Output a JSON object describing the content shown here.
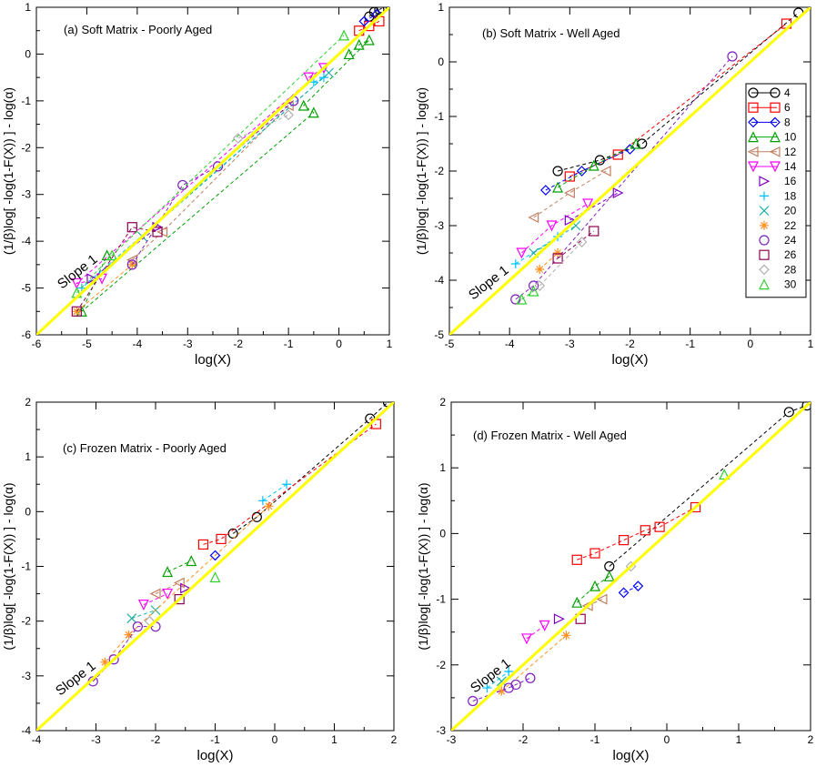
{
  "chart_data": [
    {
      "type": "scatter",
      "title": "(a) Soft Matrix - Poorly Aged",
      "xlabel": "log(X)",
      "ylabel": "(1/β)log[ -log(1-F(X)) ] - log(α)",
      "xlim": [
        -6,
        1
      ],
      "ylim": [
        -6,
        1
      ],
      "xticks": [
        "-6",
        "-5",
        "-4",
        "-3",
        "-2",
        "-1",
        "0",
        "1"
      ],
      "yticks": [
        "-6",
        "-5",
        "-4",
        "-3",
        "-2",
        "-1",
        "0",
        "1"
      ],
      "reference_line": {
        "label": "Slope 1",
        "x": [
          -6,
          1
        ],
        "y": [
          -6,
          1
        ],
        "color": "#ffff00"
      },
      "series": [
        {
          "name": "4",
          "values": [
            [
              0.6,
              0.8
            ],
            [
              0.7,
              0.9
            ],
            [
              0.8,
              0.95
            ],
            [
              0.85,
              0.98
            ]
          ]
        },
        {
          "name": "6",
          "values": [
            [
              0.4,
              0.5
            ],
            [
              0.6,
              0.6
            ],
            [
              0.8,
              0.7
            ]
          ]
        },
        {
          "name": "8",
          "values": [
            [
              0.5,
              0.7
            ],
            [
              0.75,
              0.85
            ]
          ]
        },
        {
          "name": "10",
          "values": [
            [
              0.2,
              0.0
            ],
            [
              0.4,
              0.2
            ],
            [
              0.6,
              0.3
            ],
            [
              -0.7,
              -1.1
            ],
            [
              -0.5,
              -1.25
            ],
            [
              -5.1,
              -5.5
            ],
            [
              -4.6,
              -4.3
            ]
          ]
        },
        {
          "name": "12",
          "values": [
            [
              -4.1,
              -4.4
            ],
            [
              -3.5,
              -3.8
            ],
            [
              -1.0,
              -1.1
            ]
          ]
        },
        {
          "name": "14",
          "values": [
            [
              -0.6,
              -0.5
            ],
            [
              -0.3,
              -0.3
            ],
            [
              -5.2,
              -4.9
            ],
            [
              -4.7,
              -4.8
            ]
          ]
        },
        {
          "name": "16",
          "values": [
            [
              -4.9,
              -4.8
            ],
            [
              -3.6,
              -3.7
            ]
          ]
        },
        {
          "name": "18",
          "values": [
            [
              -0.5,
              -0.6
            ],
            [
              -0.3,
              -0.5
            ],
            [
              -5.1,
              -5.0
            ]
          ]
        },
        {
          "name": "20",
          "values": [
            [
              -3.9,
              -3.9
            ],
            [
              -0.2,
              -0.4
            ]
          ]
        },
        {
          "name": "22",
          "values": [
            [
              -5.2,
              -5.5
            ],
            [
              -4.1,
              -4.5
            ]
          ]
        },
        {
          "name": "24",
          "values": [
            [
              -4.1,
              -4.5
            ],
            [
              -3.1,
              -2.8
            ],
            [
              -2.4,
              -2.4
            ],
            [
              -0.9,
              -1.0
            ]
          ]
        },
        {
          "name": "26",
          "values": [
            [
              -5.2,
              -5.5
            ],
            [
              -4.1,
              -3.7
            ],
            [
              -3.6,
              -3.8
            ]
          ]
        },
        {
          "name": "28",
          "values": [
            [
              -2.0,
              -1.8
            ],
            [
              -1.0,
              -1.3
            ]
          ]
        },
        {
          "name": "30",
          "values": [
            [
              -5.2,
              -5.1
            ],
            [
              -4.5,
              -4.3
            ],
            [
              0.1,
              0.4
            ]
          ]
        }
      ]
    },
    {
      "type": "scatter",
      "title": "(b) Soft Matrix - Well Aged",
      "xlabel": "log(X)",
      "ylabel": "(1/β)log[ -log(1-F(X)) ] - log(α)",
      "xlim": [
        -5,
        1
      ],
      "ylim": [
        -5,
        1
      ],
      "xticks": [
        "-5",
        "-4",
        "-3",
        "-2",
        "-1",
        "0",
        "1"
      ],
      "yticks": [
        "-5",
        "-4",
        "-3",
        "-2",
        "-1",
        "0",
        "1"
      ],
      "reference_line": {
        "label": "Slope 1",
        "x": [
          -5,
          1
        ],
        "y": [
          -5,
          1
        ],
        "color": "#ffff00"
      },
      "series": [
        {
          "name": "4",
          "values": [
            [
              -3.2,
              -2.0
            ],
            [
              -2.5,
              -1.8
            ],
            [
              -1.8,
              -1.5
            ],
            [
              0.8,
              0.9
            ]
          ]
        },
        {
          "name": "6",
          "values": [
            [
              -3.0,
              -2.1
            ],
            [
              -2.2,
              -1.7
            ],
            [
              0.6,
              0.7
            ]
          ]
        },
        {
          "name": "8",
          "values": [
            [
              -3.4,
              -2.35
            ],
            [
              -2.8,
              -2.0
            ],
            [
              -2.0,
              -1.6
            ]
          ]
        },
        {
          "name": "10",
          "values": [
            [
              -3.2,
              -2.3
            ],
            [
              -2.6,
              -1.9
            ],
            [
              -1.9,
              -1.5
            ]
          ]
        },
        {
          "name": "12",
          "values": [
            [
              -3.6,
              -2.85
            ],
            [
              -3.0,
              -2.4
            ],
            [
              -2.4,
              -2.0
            ]
          ]
        },
        {
          "name": "14",
          "values": [
            [
              -3.8,
              -3.5
            ],
            [
              -3.3,
              -3.0
            ],
            [
              -2.7,
              -2.6
            ]
          ]
        },
        {
          "name": "16",
          "values": [
            [
              -3.0,
              -2.9
            ],
            [
              -2.2,
              -2.4
            ]
          ]
        },
        {
          "name": "18",
          "values": [
            [
              -3.9,
              -3.7
            ],
            [
              -3.2,
              -3.2
            ]
          ]
        },
        {
          "name": "20",
          "values": [
            [
              -3.6,
              -3.5
            ],
            [
              -2.9,
              -3.0
            ]
          ]
        },
        {
          "name": "22",
          "values": [
            [
              -3.5,
              -3.8
            ],
            [
              -3.2,
              -3.5
            ]
          ]
        },
        {
          "name": "24",
          "values": [
            [
              -3.9,
              -4.35
            ],
            [
              -3.6,
              -4.1
            ],
            [
              -0.3,
              0.1
            ]
          ]
        },
        {
          "name": "26",
          "values": [
            [
              -3.2,
              -3.6
            ],
            [
              -2.6,
              -3.1
            ]
          ]
        },
        {
          "name": "28",
          "values": [
            [
              -3.5,
              -4.1
            ],
            [
              -2.8,
              -3.3
            ]
          ]
        },
        {
          "name": "30",
          "values": [
            [
              -3.8,
              -4.35
            ],
            [
              -3.6,
              -4.2
            ]
          ]
        }
      ],
      "legend": [
        "4",
        "6",
        "8",
        "10",
        "12",
        "14",
        "16",
        "18",
        "20",
        "22",
        "24",
        "26",
        "28",
        "30"
      ]
    },
    {
      "type": "scatter",
      "title": "(c) Frozen Matrix - Poorly Aged",
      "xlabel": "log(X)",
      "ylabel": "(1/β)log[ -log(1-F(X)) ] - log(α)",
      "xlim": [
        -4,
        2
      ],
      "ylim": [
        -4,
        2
      ],
      "xticks": [
        "-4",
        "-3",
        "-2",
        "-1",
        "0",
        "1",
        "2"
      ],
      "yticks": [
        "-4",
        "-3",
        "-2",
        "-1",
        "0",
        "1",
        "2"
      ],
      "reference_line": {
        "label": "Slope 1",
        "x": [
          -4,
          2
        ],
        "y": [
          -4,
          2
        ],
        "color": "#ffff00"
      },
      "series": [
        {
          "name": "4",
          "values": [
            [
              -0.7,
              -0.4
            ],
            [
              -0.3,
              -0.1
            ],
            [
              1.6,
              1.7
            ],
            [
              1.9,
              2.0
            ]
          ]
        },
        {
          "name": "6",
          "values": [
            [
              -1.2,
              -0.6
            ],
            [
              -0.9,
              -0.5
            ],
            [
              1.7,
              1.6
            ]
          ]
        },
        {
          "name": "8",
          "values": [
            [
              -1.0,
              -0.8
            ]
          ]
        },
        {
          "name": "10",
          "values": [
            [
              -1.8,
              -1.1
            ],
            [
              -1.4,
              -0.9
            ]
          ]
        },
        {
          "name": "12",
          "values": [
            [
              -2.0,
              -1.5
            ],
            [
              -1.6,
              -1.3
            ]
          ]
        },
        {
          "name": "14",
          "values": [
            [
              -2.2,
              -1.7
            ],
            [
              -1.8,
              -1.5
            ]
          ]
        },
        {
          "name": "16",
          "values": [
            [
              -1.5,
              -1.4
            ]
          ]
        },
        {
          "name": "18",
          "values": [
            [
              -0.2,
              0.2
            ],
            [
              0.2,
              0.5
            ]
          ]
        },
        {
          "name": "20",
          "values": [
            [
              -2.4,
              -1.95
            ],
            [
              -2.0,
              -1.8
            ]
          ]
        },
        {
          "name": "22",
          "values": [
            [
              -2.85,
              -2.75
            ],
            [
              -2.45,
              -2.25
            ],
            [
              -0.1,
              0.1
            ]
          ]
        },
        {
          "name": "24",
          "values": [
            [
              -3.05,
              -3.1
            ],
            [
              -2.7,
              -2.7
            ],
            [
              -2.3,
              -2.1
            ],
            [
              -2.0,
              -2.1
            ]
          ]
        },
        {
          "name": "26",
          "values": [
            [
              -1.6,
              -1.6
            ]
          ]
        },
        {
          "name": "28",
          "values": [
            [
              -2.1,
              -2.0
            ]
          ]
        },
        {
          "name": "30",
          "values": [
            [
              -1.0,
              -1.2
            ]
          ]
        }
      ]
    },
    {
      "type": "scatter",
      "title": "(d) Frozen Matrix - Well Aged",
      "xlabel": "log(X)",
      "ylabel": "(1/β)log[ -log(1-F(X)) ] - log(α)",
      "xlim": [
        -3,
        2
      ],
      "ylim": [
        -3,
        2
      ],
      "xticks": [
        "-3",
        "-2",
        "-1",
        "0",
        "1",
        "2"
      ],
      "yticks": [
        "-3",
        "-2",
        "-1",
        "0",
        "1",
        "2"
      ],
      "reference_line": {
        "label": "Slope 1",
        "x": [
          -3,
          2
        ],
        "y": [
          -3,
          2
        ],
        "color": "#ffff00"
      },
      "series": [
        {
          "name": "4",
          "values": [
            [
              -0.8,
              -0.5
            ],
            [
              1.7,
              1.85
            ],
            [
              1.95,
              1.95
            ]
          ]
        },
        {
          "name": "6",
          "values": [
            [
              -1.25,
              -0.4
            ],
            [
              -1.0,
              -0.3
            ],
            [
              -0.6,
              -0.1
            ],
            [
              -0.3,
              0.05
            ],
            [
              -0.1,
              0.1
            ],
            [
              0.4,
              0.4
            ]
          ]
        },
        {
          "name": "8",
          "values": [
            [
              -0.6,
              -0.9
            ],
            [
              -0.4,
              -0.8
            ]
          ]
        },
        {
          "name": "10",
          "values": [
            [
              -1.25,
              -1.05
            ],
            [
              -1.0,
              -0.8
            ],
            [
              -0.8,
              -0.65
            ]
          ]
        },
        {
          "name": "12",
          "values": [
            [
              -1.1,
              -1.1
            ],
            [
              -0.9,
              -1.0
            ]
          ]
        },
        {
          "name": "14",
          "values": [
            [
              -1.95,
              -1.6
            ],
            [
              -1.7,
              -1.4
            ]
          ]
        },
        {
          "name": "16",
          "values": [
            [
              -1.5,
              -1.3
            ]
          ]
        },
        {
          "name": "18",
          "values": [
            [
              -2.5,
              -2.35
            ],
            [
              -2.2,
              -2.1
            ]
          ]
        },
        {
          "name": "20",
          "values": [
            [
              -2.3,
              -2.25
            ]
          ]
        },
        {
          "name": "22",
          "values": [
            [
              -2.3,
              -2.4
            ],
            [
              -1.4,
              -1.55
            ]
          ]
        },
        {
          "name": "24",
          "values": [
            [
              -2.7,
              -2.55
            ],
            [
              -2.2,
              -2.35
            ],
            [
              -2.1,
              -2.3
            ],
            [
              -1.9,
              -2.2
            ]
          ]
        },
        {
          "name": "26",
          "values": [
            [
              -1.2,
              -1.3
            ]
          ]
        },
        {
          "name": "28",
          "values": [
            [
              -0.5,
              -0.5
            ]
          ]
        },
        {
          "name": "30",
          "values": [
            [
              0.8,
              0.9
            ]
          ]
        }
      ]
    }
  ],
  "colors": {
    "4": "#000000",
    "6": "#ff0000",
    "8": "#0000ff",
    "10": "#00a000",
    "12": "#c08060",
    "14": "#ff00ff",
    "16": "#8000c0",
    "18": "#00c0ff",
    "20": "#20b0a0",
    "22": "#ff9020",
    "24": "#8020c0",
    "26": "#900050",
    "28": "#b0b0b0",
    "30": "#30d030",
    "reference": "#ffff00"
  },
  "markers": {
    "4": "circle",
    "6": "square",
    "8": "diamond",
    "10": "triangle-up",
    "12": "triangle-left",
    "14": "triangle-down",
    "16": "triangle-right",
    "18": "plus",
    "20": "cross",
    "22": "asterisk",
    "24": "circle",
    "26": "square",
    "28": "diamond",
    "30": "triangle-up"
  }
}
